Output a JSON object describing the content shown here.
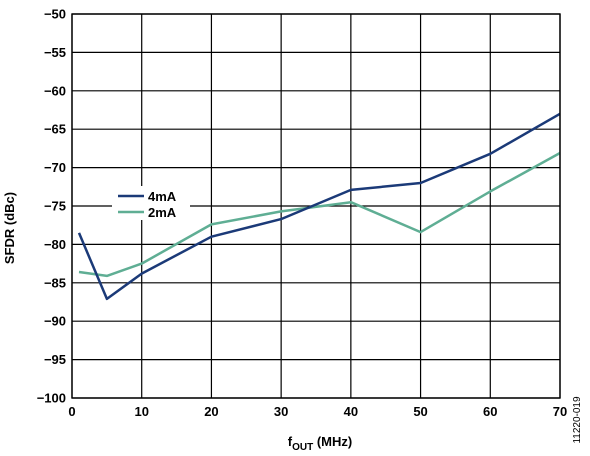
{
  "chart_data": {
    "type": "line",
    "title": "",
    "xlabel": "f",
    "xlabel_sub": "OUT",
    "xlabel_unit": " (MHz)",
    "ylabel": "SFDR (dBc)",
    "xlim": [
      0,
      70
    ],
    "ylim": [
      -100,
      -50
    ],
    "xticks": [
      0,
      10,
      20,
      30,
      40,
      50,
      60,
      70
    ],
    "xtick_labels": [
      "0",
      "10",
      "20",
      "30",
      "40",
      "50",
      "60",
      "70"
    ],
    "yticks": [
      -50,
      -55,
      -60,
      -65,
      -70,
      -75,
      -80,
      -85,
      -90,
      -95,
      -100
    ],
    "ytick_labels": [
      "−50",
      "−55",
      "−60",
      "−65",
      "−70",
      "−75",
      "−80",
      "−85",
      "−90",
      "−95",
      "−100"
    ],
    "grid": true,
    "legend_position": "left-middle",
    "series": [
      {
        "name": "4mA",
        "color": "#1b3a78",
        "x": [
          1,
          5,
          10,
          20,
          30,
          40,
          50,
          60,
          70
        ],
        "y": [
          -78.5,
          -87.1,
          -83.8,
          -79.0,
          -76.7,
          -72.9,
          -72.0,
          -68.2,
          -63.0
        ]
      },
      {
        "name": "2mA",
        "color": "#5fae94",
        "x": [
          1,
          5,
          10,
          20,
          30,
          40,
          50,
          60,
          70
        ],
        "y": [
          -83.6,
          -84.1,
          -82.5,
          -77.4,
          -75.7,
          -74.5,
          -78.4,
          -73.1,
          -68.1
        ]
      }
    ]
  },
  "figure_id": "11220-019"
}
